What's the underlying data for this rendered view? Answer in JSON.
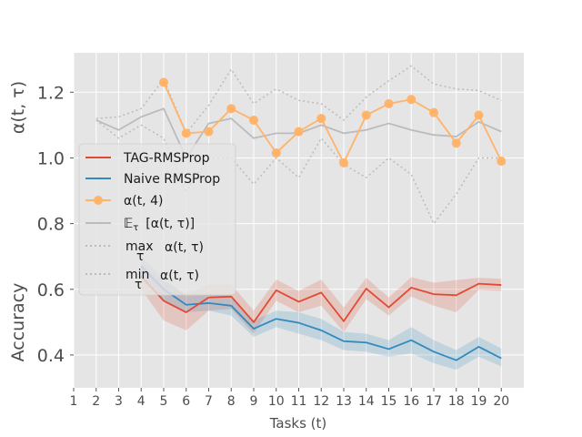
{
  "chart_data": {
    "type": "line",
    "xlabel": "Tasks (t)",
    "ylabel_top": "α(t, τ)",
    "ylabel_bottom": "Accuracy",
    "x_ticks": [
      1,
      2,
      3,
      4,
      5,
      6,
      7,
      8,
      9,
      10,
      11,
      12,
      13,
      14,
      15,
      16,
      17,
      18,
      19,
      20
    ],
    "xlim": [
      1,
      21
    ],
    "ylim": [
      0.3,
      1.32
    ],
    "y_ticks": [
      0.4,
      0.6,
      0.8,
      1.0,
      1.2
    ],
    "y_tick_labels": [
      "0.4",
      "0.6",
      "0.8",
      "1.0",
      "1.2"
    ],
    "grid": true,
    "legend_position": "center-left",
    "series": [
      {
        "name": "TAG-RMSProp",
        "legend_label": "TAG-RMSProp",
        "style": "solid",
        "color": "#E24A33",
        "x": [
          4,
          5,
          6,
          7,
          8,
          9,
          10,
          11,
          12,
          13,
          14,
          15,
          16,
          17,
          18,
          19,
          20
        ],
        "values": [
          0.64,
          0.565,
          0.53,
          0.575,
          0.578,
          0.5,
          0.597,
          0.562,
          0.59,
          0.503,
          0.602,
          0.545,
          0.605,
          0.585,
          0.582,
          0.617,
          0.613
        ],
        "band_lower": [
          0.6,
          0.505,
          0.475,
          0.535,
          0.54,
          0.465,
          0.565,
          0.53,
          0.55,
          0.47,
          0.57,
          0.52,
          0.578,
          0.55,
          0.53,
          0.598,
          0.595
        ],
        "band_upper": [
          0.68,
          0.625,
          0.585,
          0.615,
          0.615,
          0.535,
          0.63,
          0.595,
          0.63,
          0.545,
          0.635,
          0.575,
          0.637,
          0.62,
          0.628,
          0.635,
          0.632
        ]
      },
      {
        "name": "Naive RMSProp",
        "legend_label": "Naive RMSProp",
        "style": "solid",
        "color": "#348ABD",
        "x": [
          4,
          5,
          6,
          7,
          8,
          9,
          10,
          11,
          12,
          13,
          14,
          15,
          16,
          17,
          18,
          19,
          20
        ],
        "values": [
          0.67,
          0.6,
          0.553,
          0.558,
          0.55,
          0.48,
          0.51,
          0.498,
          0.475,
          0.442,
          0.438,
          0.418,
          0.445,
          0.41,
          0.384,
          0.425,
          0.39
        ],
        "band_lower": [
          0.63,
          0.565,
          0.53,
          0.535,
          0.52,
          0.455,
          0.485,
          0.465,
          0.445,
          0.415,
          0.41,
          0.395,
          0.405,
          0.375,
          0.355,
          0.395,
          0.365
        ],
        "band_upper": [
          0.7,
          0.635,
          0.58,
          0.585,
          0.58,
          0.505,
          0.535,
          0.53,
          0.51,
          0.47,
          0.465,
          0.445,
          0.485,
          0.445,
          0.415,
          0.455,
          0.42
        ]
      },
      {
        "name": "alpha_t4",
        "legend_label": "α(t, 4)",
        "style": "line-marker",
        "color": "#FFB36B",
        "x": [
          5,
          6,
          7,
          8,
          9,
          10,
          11,
          12,
          13,
          14,
          15,
          16,
          17,
          18,
          19,
          20
        ],
        "values": [
          1.23,
          1.075,
          1.08,
          1.15,
          1.115,
          1.015,
          1.08,
          1.12,
          0.985,
          1.13,
          1.165,
          1.178,
          1.138,
          1.045,
          1.13,
          0.99
        ]
      },
      {
        "name": "mean_alpha",
        "legend_label": "𝔼τ [α(t, τ)]",
        "style": "solid",
        "color": "#BBBBBB",
        "x": [
          2,
          3,
          4,
          5,
          6,
          7,
          8,
          9,
          10,
          11,
          12,
          13,
          14,
          15,
          16,
          17,
          18,
          19,
          20
        ],
        "values": [
          1.115,
          1.085,
          1.125,
          1.15,
          1.0,
          1.105,
          1.12,
          1.06,
          1.075,
          1.075,
          1.1,
          1.075,
          1.085,
          1.105,
          1.085,
          1.07,
          1.065,
          1.11,
          1.08
        ]
      },
      {
        "name": "max_alpha",
        "legend_label": "max α(t, τ)",
        "style": "dotted",
        "color": "#BBBBBB",
        "x": [
          2,
          3,
          4,
          5,
          6,
          7,
          8,
          9,
          10,
          11,
          12,
          13,
          14,
          15,
          16,
          17,
          18,
          19,
          20
        ],
        "values": [
          1.12,
          1.125,
          1.15,
          1.24,
          1.075,
          1.16,
          1.27,
          1.165,
          1.21,
          1.175,
          1.165,
          1.115,
          1.185,
          1.235,
          1.28,
          1.225,
          1.21,
          1.205,
          1.175
        ]
      },
      {
        "name": "min_alpha",
        "legend_label": "min α(t, τ)",
        "style": "dotted",
        "color": "#BBBBBB",
        "x": [
          2,
          3,
          4,
          5,
          6,
          7,
          8,
          9,
          10,
          11,
          12,
          13,
          14,
          15,
          16,
          17,
          18,
          19,
          20
        ],
        "values": [
          1.115,
          1.06,
          1.1,
          1.06,
          0.9,
          1.0,
          1.0,
          0.92,
          1.0,
          0.94,
          1.06,
          0.98,
          0.94,
          1.0,
          0.95,
          0.8,
          0.89,
          1.0,
          1.0
        ]
      }
    ],
    "legend_labels": {
      "tag": "TAG-RMSProp",
      "naive": "Naive RMSProp",
      "alpha4": "α(t, 4)",
      "mean_e": "𝔼",
      "mean_tau": "τ",
      "mean_rest": "[α(t, τ)]",
      "max_op": "max",
      "min_op": "min",
      "tau": "τ",
      "alpha_tt": "α(t, τ)"
    }
  }
}
